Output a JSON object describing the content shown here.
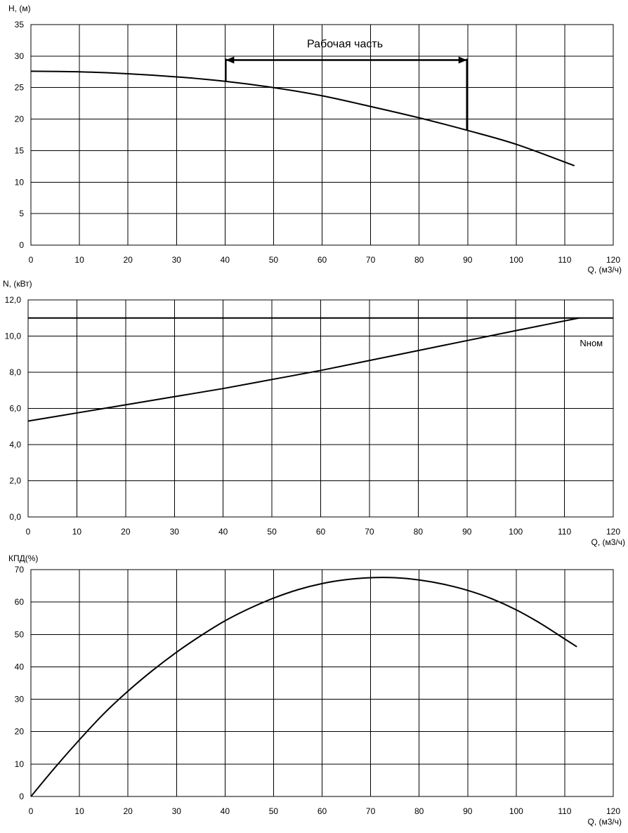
{
  "chart_data": [
    {
      "type": "line",
      "title": "",
      "ylabel": "H, (м)",
      "xlabel": "Q, (м3/ч)",
      "xlim": [
        0,
        120
      ],
      "ylim": [
        0,
        35
      ],
      "xticks": [
        0,
        10,
        20,
        30,
        40,
        50,
        60,
        70,
        80,
        90,
        100,
        110,
        120
      ],
      "yticks": [
        0,
        5,
        10,
        15,
        20,
        25,
        30,
        35
      ],
      "grid": true,
      "series": [
        {
          "values_x": [
            0,
            10,
            20,
            30,
            40,
            50,
            60,
            70,
            80,
            90,
            100,
            112
          ],
          "values_y": [
            27.6,
            27.5,
            27.2,
            26.7,
            26.0,
            25.0,
            23.7,
            22.0,
            20.2,
            18.2,
            16.0,
            12.6
          ]
        }
      ],
      "annotation": {
        "text": "Рабочая часть",
        "x_start": 40,
        "x_end": 90,
        "y": 29.6
      }
    },
    {
      "type": "line",
      "title": "",
      "ylabel": "N, (кВт)",
      "xlabel": "Q, (м3/ч)",
      "xlim": [
        0,
        120
      ],
      "ylim": [
        0,
        12
      ],
      "xticks": [
        0,
        10,
        20,
        30,
        40,
        50,
        60,
        70,
        80,
        90,
        100,
        110,
        120
      ],
      "yticks": [
        "0,0",
        "2,0",
        "4,0",
        "6,0",
        "8,0",
        "10,0",
        "12,0"
      ],
      "ytick_values": [
        0,
        2,
        4,
        6,
        8,
        10,
        12
      ],
      "grid": true,
      "series": [
        {
          "values_x": [
            0,
            10,
            20,
            30,
            40,
            50,
            60,
            70,
            80,
            90,
            100,
            113
          ],
          "values_y": [
            5.3,
            5.75,
            6.2,
            6.65,
            7.1,
            7.6,
            8.1,
            8.65,
            9.2,
            9.75,
            10.3,
            11.0
          ]
        },
        {
          "values_x": [
            0,
            120
          ],
          "values_y": [
            11.0,
            11.0
          ]
        }
      ],
      "annotation": {
        "text": "Nном",
        "x": 115.5,
        "y": 9.6
      }
    },
    {
      "type": "line",
      "title": "",
      "ylabel": "КПД(%)",
      "xlabel": "Q, (м3/ч)",
      "xlim": [
        0,
        120
      ],
      "ylim": [
        0,
        70
      ],
      "xticks": [
        0,
        10,
        20,
        30,
        40,
        50,
        60,
        70,
        80,
        90,
        100,
        110,
        120
      ],
      "yticks": [
        0,
        10,
        20,
        30,
        40,
        50,
        60,
        70
      ],
      "grid": true,
      "series": [
        {
          "values_x": [
            0,
            5,
            10,
            15,
            20,
            25,
            30,
            35,
            40,
            45,
            50,
            55,
            60,
            65,
            70,
            75,
            80,
            85,
            90,
            95,
            100,
            105,
            110,
            112.5
          ],
          "values_y": [
            0,
            9,
            17.5,
            25.5,
            32.5,
            38.8,
            44.5,
            49.6,
            54.2,
            58.0,
            61.2,
            63.8,
            65.7,
            66.9,
            67.5,
            67.5,
            66.8,
            65.5,
            63.6,
            61.0,
            57.6,
            53.4,
            48.6,
            46.2
          ]
        }
      ]
    }
  ]
}
